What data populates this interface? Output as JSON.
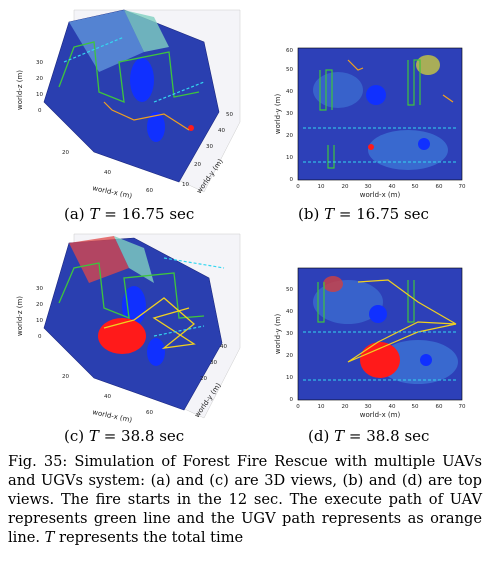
{
  "figure": {
    "panels": [
      {
        "id": "a",
        "label": "(a)",
        "view": "3d",
        "time_value": "16.75",
        "time_unit": "sec",
        "axes": {
          "x": "world-x (m)",
          "y": "world-y (m)",
          "z": "world-z (m)",
          "x_ticks": [
            "20",
            "40",
            "60"
          ],
          "y_ticks": [
            "10",
            "20",
            "30",
            "40",
            "50"
          ],
          "z_ticks": [
            "0",
            "10",
            "20",
            "30"
          ]
        }
      },
      {
        "id": "b",
        "label": "(b)",
        "view": "top",
        "time_value": "16.75",
        "time_unit": "sec",
        "axes": {
          "x": "world-x (m)",
          "y": "world-y (m)",
          "x_ticks": [
            "0",
            "10",
            "20",
            "30",
            "40",
            "50",
            "60",
            "70"
          ],
          "y_ticks": [
            "0",
            "10",
            "20",
            "30",
            "40",
            "50",
            "60"
          ]
        }
      },
      {
        "id": "c",
        "label": "(c)",
        "view": "3d",
        "time_value": "38.8",
        "time_unit": "sec",
        "axes": {
          "x": "world-x (m)",
          "y": "world-y (m)",
          "z": "world-z (m)",
          "x_ticks": [
            "20",
            "40",
            "60"
          ],
          "y_ticks": [
            "20",
            "30",
            "40"
          ],
          "z_ticks": [
            "0",
            "10",
            "20",
            "30"
          ]
        }
      },
      {
        "id": "d",
        "label": "(d)",
        "view": "top",
        "time_value": "38.8",
        "time_unit": "sec",
        "axes": {
          "x": "world-x (m)",
          "y": "world-y (m)",
          "x_ticks": [
            "0",
            "10",
            "20",
            "30",
            "40",
            "50",
            "60",
            "70"
          ],
          "y_ticks": [
            "0",
            "10",
            "20",
            "30",
            "40",
            "50"
          ]
        }
      }
    ],
    "time_symbol": "T",
    "time_eq": "=",
    "colors": {
      "terrain": "#2a3fb0",
      "uav_path": "#3ec43e",
      "ugv_path": "#f0a020",
      "fire": "#ff1a1a",
      "obstacle": "#1030ff",
      "dashed": "#34d6f0"
    }
  },
  "caption": {
    "prefix": "Fig. 35: Simulation of Forest Fire Rescue with multiple UAVs and UGVs system: (a) and (c) are 3D views, (b) and (d) are top views. The fire starts in the 12 sec. The execute path of UAV represents green line and the UGV path represents as orange line.",
    "symbol": "T",
    "suffix": "represents the total time"
  }
}
